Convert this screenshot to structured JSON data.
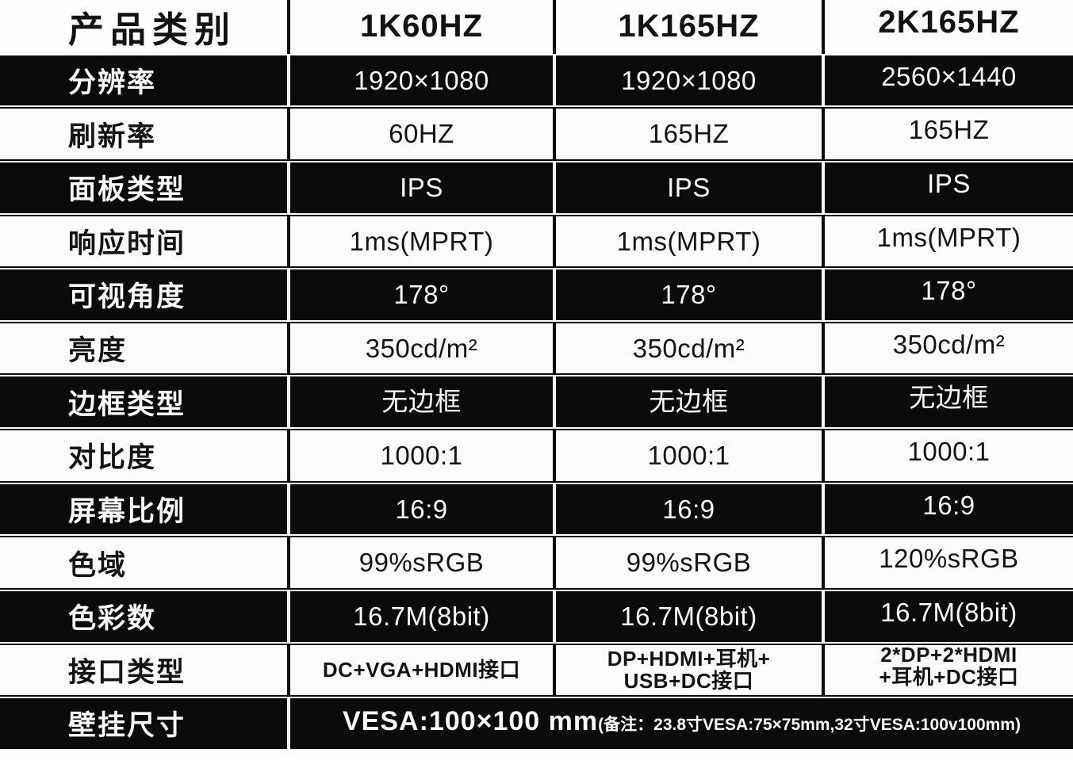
{
  "table": {
    "header": {
      "label": "产品类别",
      "columns": [
        "1K60HZ",
        "1K165HZ",
        "2K165HZ"
      ]
    },
    "rows": [
      {
        "label": "分辨率",
        "values": [
          "1920×1080",
          "1920×1080",
          "2560×1440"
        ]
      },
      {
        "label": "刷新率",
        "values": [
          "60HZ",
          "165HZ",
          "165HZ"
        ]
      },
      {
        "label": "面板类型",
        "values": [
          "IPS",
          "IPS",
          "IPS"
        ]
      },
      {
        "label": "响应时间",
        "values": [
          "1ms(MPRT)",
          "1ms(MPRT)",
          "1ms(MPRT)"
        ]
      },
      {
        "label": "可视角度",
        "values": [
          "178°",
          "178°",
          "178°"
        ]
      },
      {
        "label": "亮度",
        "values": [
          "350cd/m²",
          "350cd/m²",
          "350cd/m²"
        ]
      },
      {
        "label": "边框类型",
        "values": [
          "无边框",
          "无边框",
          "无边框"
        ]
      },
      {
        "label": "对比度",
        "values": [
          "1000:1",
          "1000:1",
          "1000:1"
        ]
      },
      {
        "label": "屏幕比例",
        "values": [
          "16:9",
          "16:9",
          "16:9"
        ]
      },
      {
        "label": "色域",
        "values": [
          "99%sRGB",
          "99%sRGB",
          "120%sRGB"
        ]
      },
      {
        "label": "色彩数",
        "values": [
          "16.7M(8bit)",
          "16.7M(8bit)",
          "16.7M(8bit)"
        ]
      },
      {
        "label": "接口类型",
        "values": [
          "DC+VGA+HDMI接口",
          "DP+HDMI+耳机+\nUSB+DC接口",
          "2*DP+2*HDMI\n+耳机+DC接口"
        ]
      }
    ],
    "wall_mount": {
      "label": "壁挂尺寸",
      "main": "VESA:100×100 mm",
      "note": "(备注：23.8寸VESA:75×75mm,32寸VESA:100v100mm)"
    },
    "colors": {
      "band_black": "#0b0b0b",
      "row_white": "#fbfbfb",
      "divider_on_dark": "#f6f6f6",
      "divider_on_light": "#0c0c0c"
    }
  }
}
